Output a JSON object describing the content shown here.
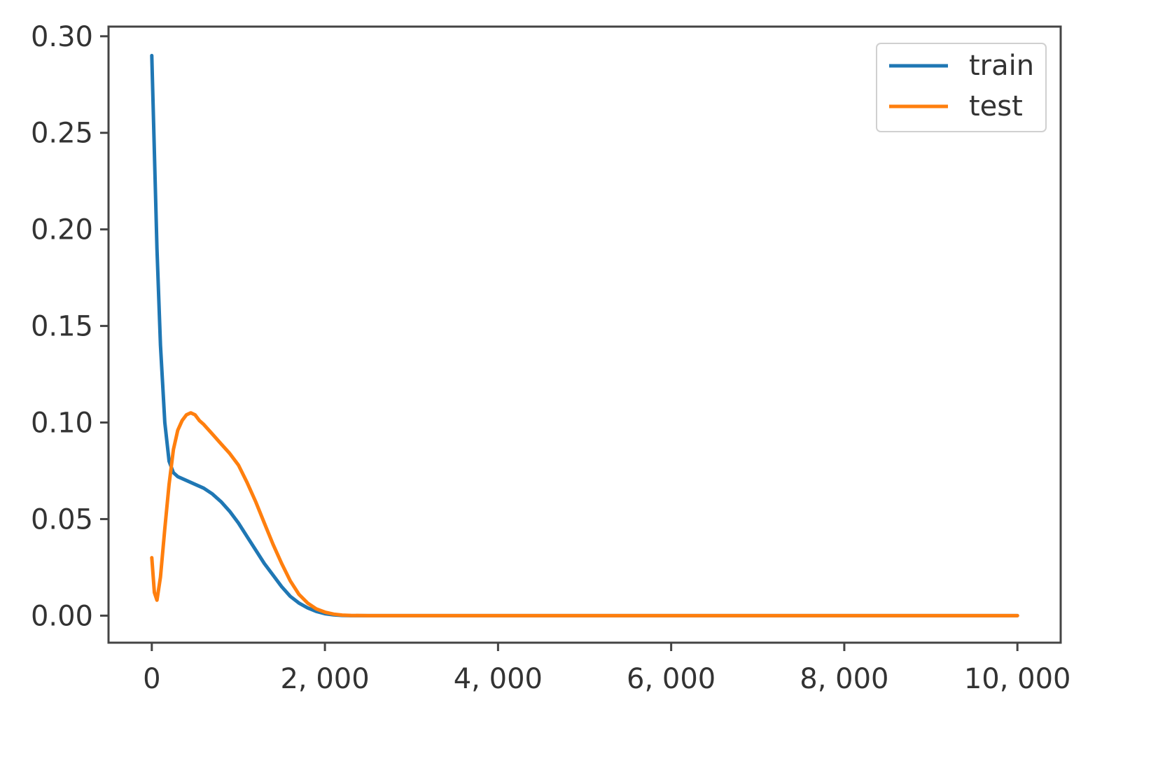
{
  "chart_data": {
    "type": "line",
    "title": "",
    "xlabel": "",
    "ylabel": "",
    "xlim": [
      -500,
      10500
    ],
    "ylim": [
      -0.014,
      0.305
    ],
    "x_ticks": [
      0,
      2000,
      4000,
      6000,
      8000,
      10000
    ],
    "x_tick_labels": [
      "0",
      "2, 000",
      "4, 000",
      "6, 000",
      "8, 000",
      "10, 000"
    ],
    "y_ticks": [
      0.0,
      0.05,
      0.1,
      0.15,
      0.2,
      0.25,
      0.3
    ],
    "y_tick_labels": [
      "0.00",
      "0.05",
      "0.10",
      "0.15",
      "0.20",
      "0.25",
      "0.30"
    ],
    "grid": false,
    "legend_position": "top-right",
    "series": [
      {
        "name": "train",
        "color": "#1f77b4",
        "x": [
          0,
          30,
          60,
          100,
          150,
          200,
          250,
          300,
          400,
          500,
          600,
          700,
          800,
          900,
          1000,
          1100,
          1200,
          1300,
          1400,
          1500,
          1600,
          1700,
          1800,
          1900,
          2000,
          2100,
          2200,
          2300,
          2400,
          2600,
          3000,
          4000,
          6000,
          8000,
          10000
        ],
        "y": [
          0.29,
          0.24,
          0.19,
          0.14,
          0.1,
          0.08,
          0.074,
          0.072,
          0.07,
          0.068,
          0.066,
          0.063,
          0.059,
          0.054,
          0.048,
          0.041,
          0.034,
          0.027,
          0.021,
          0.015,
          0.01,
          0.0065,
          0.004,
          0.0022,
          0.001,
          0.0004,
          0.0001,
          0.0,
          0.0,
          0.0,
          0.0,
          0.0,
          0.0,
          0.0,
          0.0
        ]
      },
      {
        "name": "test",
        "color": "#ff7f0e",
        "x": [
          0,
          30,
          60,
          100,
          150,
          200,
          250,
          300,
          350,
          400,
          450,
          500,
          550,
          600,
          700,
          800,
          900,
          1000,
          1100,
          1200,
          1300,
          1400,
          1500,
          1600,
          1700,
          1800,
          1900,
          2000,
          2100,
          2200,
          2300,
          2500,
          3000,
          4000,
          6000,
          8000,
          10000
        ],
        "y": [
          0.03,
          0.012,
          0.008,
          0.02,
          0.045,
          0.068,
          0.086,
          0.096,
          0.101,
          0.104,
          0.105,
          0.104,
          0.101,
          0.099,
          0.094,
          0.089,
          0.084,
          0.078,
          0.069,
          0.059,
          0.048,
          0.037,
          0.027,
          0.018,
          0.011,
          0.0065,
          0.0035,
          0.0018,
          0.0008,
          0.0003,
          0.0001,
          0.0,
          0.0,
          0.0,
          0.0,
          0.0,
          0.0
        ]
      }
    ]
  }
}
